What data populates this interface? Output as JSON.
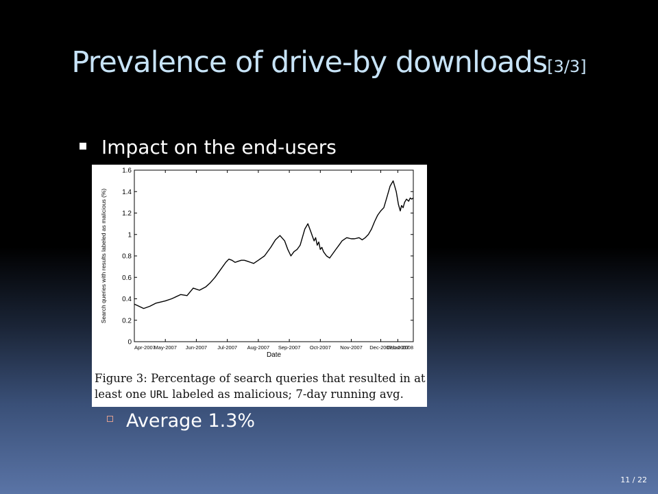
{
  "slide": {
    "title": "Prevalence of drive-by downloads",
    "title_suffix": "[3/3]",
    "bullet": "Impact on the end-users",
    "sub_bullet": "Average 1.3%",
    "page_current": "11",
    "page_sep": "/",
    "page_total": "22"
  },
  "figure": {
    "caption_part1": "Figure 3: Percentage of search queries that resulted in at least one ",
    "caption_mono": "URL",
    "caption_part2": " labeled as malicious; 7-day running avg."
  },
  "chart_data": {
    "type": "line",
    "title": "",
    "xlabel": "Date",
    "ylabel": "Search queries with results labeled as malicious (%)",
    "xlim": [
      0,
      9
    ],
    "ylim": [
      0,
      1.6
    ],
    "yticks": [
      0,
      0.2,
      0.4,
      0.6,
      0.8,
      1,
      1.2,
      1.4,
      1.6
    ],
    "xtick_labels": [
      "Apr-2007",
      "May-2007",
      "Jun-2007",
      "Jul-2007",
      "Aug-2007",
      "Sep-2007",
      "Oct-2007",
      "Nov-2007",
      "Dec-2007",
      "Dec-2007",
      "Jan-2008"
    ],
    "xtick_positions": [
      0,
      1,
      2,
      3,
      4,
      5,
      6,
      7,
      7.95,
      8.5,
      9
    ],
    "grid": false,
    "series": [
      {
        "x": [
          0,
          0.15,
          0.3,
          0.5,
          0.7,
          1.0,
          1.2,
          1.5,
          1.7,
          1.9,
          2.1,
          2.3,
          2.45,
          2.6,
          2.8,
          2.95,
          3.05,
          3.15,
          3.25,
          3.35,
          3.45,
          3.55,
          3.65,
          3.75,
          3.85,
          4.0,
          4.2,
          4.4,
          4.55,
          4.7,
          4.85,
          4.95,
          5.05,
          5.15,
          5.25,
          5.35,
          5.5,
          5.6,
          5.7,
          5.75,
          5.8,
          5.85,
          5.9,
          5.95,
          6.0,
          6.05,
          6.1,
          6.2,
          6.3,
          6.4,
          6.5,
          6.6,
          6.7,
          6.85,
          7.0,
          7.1,
          7.25,
          7.35,
          7.45,
          7.55,
          7.65,
          7.75,
          7.85,
          7.95,
          8.05,
          8.15,
          8.25,
          8.35,
          8.45,
          8.52,
          8.58,
          8.62,
          8.67,
          8.72,
          8.78,
          8.85,
          8.9,
          8.95,
          9.0
        ],
        "y": [
          0.35,
          0.33,
          0.31,
          0.33,
          0.36,
          0.38,
          0.4,
          0.44,
          0.43,
          0.5,
          0.48,
          0.51,
          0.55,
          0.6,
          0.68,
          0.74,
          0.77,
          0.76,
          0.74,
          0.75,
          0.76,
          0.76,
          0.75,
          0.74,
          0.73,
          0.76,
          0.8,
          0.88,
          0.95,
          0.99,
          0.94,
          0.86,
          0.8,
          0.84,
          0.86,
          0.9,
          1.05,
          1.1,
          1.02,
          0.98,
          0.94,
          0.97,
          0.9,
          0.93,
          0.86,
          0.88,
          0.84,
          0.8,
          0.78,
          0.82,
          0.86,
          0.9,
          0.94,
          0.97,
          0.96,
          0.96,
          0.97,
          0.95,
          0.97,
          1.0,
          1.05,
          1.12,
          1.18,
          1.22,
          1.25,
          1.35,
          1.45,
          1.5,
          1.4,
          1.28,
          1.22,
          1.27,
          1.25,
          1.3,
          1.33,
          1.31,
          1.34,
          1.33,
          1.34
        ]
      }
    ]
  }
}
